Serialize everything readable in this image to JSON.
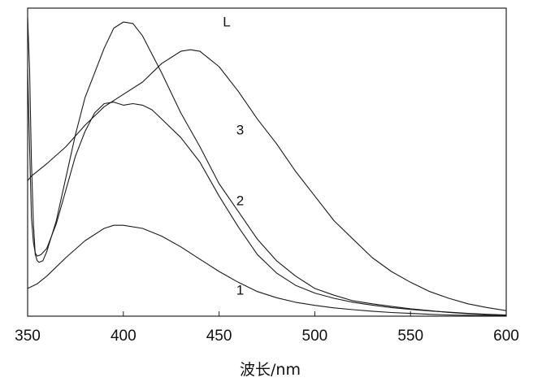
{
  "chart_data": {
    "type": "line",
    "title": "",
    "xlabel": "波长/nm",
    "ylabel": "",
    "xlim": [
      350,
      600
    ],
    "ylim": [
      0,
      100
    ],
    "x_ticks": [
      350,
      400,
      450,
      500,
      550,
      600
    ],
    "grid": false,
    "series": [
      {
        "name": "L",
        "points": [
          [
            350,
            44
          ],
          [
            352,
            45.5
          ],
          [
            355,
            47
          ],
          [
            360,
            49.5
          ],
          [
            370,
            55
          ],
          [
            380,
            62
          ],
          [
            390,
            68
          ],
          [
            400,
            72
          ],
          [
            410,
            76
          ],
          [
            420,
            82
          ],
          [
            430,
            86
          ],
          [
            435,
            86.5
          ],
          [
            440,
            86
          ],
          [
            450,
            81
          ],
          [
            460,
            73
          ],
          [
            470,
            64
          ],
          [
            480,
            56
          ],
          [
            490,
            47
          ],
          [
            500,
            39
          ],
          [
            510,
            31
          ],
          [
            520,
            25
          ],
          [
            530,
            19
          ],
          [
            540,
            14.5
          ],
          [
            550,
            11
          ],
          [
            560,
            8
          ],
          [
            570,
            5.8
          ],
          [
            580,
            4
          ],
          [
            590,
            2.8
          ],
          [
            600,
            1.8
          ]
        ]
      },
      {
        "name": "3",
        "points": [
          [
            350,
            97
          ],
          [
            351,
            80
          ],
          [
            352,
            50
          ],
          [
            353,
            30
          ],
          [
            354,
            20
          ],
          [
            355,
            18
          ],
          [
            356,
            17.5
          ],
          [
            358,
            18
          ],
          [
            360,
            21
          ],
          [
            365,
            31
          ],
          [
            370,
            45
          ],
          [
            375,
            59
          ],
          [
            380,
            71
          ],
          [
            385,
            79
          ],
          [
            390,
            87
          ],
          [
            395,
            93.5
          ],
          [
            400,
            95.5
          ],
          [
            405,
            95
          ],
          [
            410,
            91
          ],
          [
            420,
            79
          ],
          [
            430,
            66
          ],
          [
            440,
            55
          ],
          [
            450,
            43
          ],
          [
            460,
            34
          ],
          [
            470,
            25
          ],
          [
            480,
            18
          ],
          [
            490,
            13
          ],
          [
            500,
            9
          ],
          [
            510,
            6.8
          ],
          [
            520,
            5
          ],
          [
            530,
            4
          ],
          [
            540,
            3.2
          ],
          [
            550,
            2.4
          ],
          [
            560,
            1.8
          ],
          [
            570,
            1.2
          ],
          [
            580,
            0.8
          ],
          [
            590,
            0.5
          ],
          [
            600,
            0.3
          ]
        ]
      },
      {
        "name": "2",
        "points": [
          [
            350,
            80
          ],
          [
            351,
            55
          ],
          [
            352,
            32
          ],
          [
            353,
            24
          ],
          [
            354,
            20.5
          ],
          [
            355,
            19.5
          ],
          [
            357,
            20
          ],
          [
            360,
            22
          ],
          [
            365,
            30
          ],
          [
            370,
            41
          ],
          [
            375,
            52
          ],
          [
            380,
            60
          ],
          [
            385,
            66
          ],
          [
            390,
            69
          ],
          [
            395,
            69.5
          ],
          [
            400,
            68.5
          ],
          [
            405,
            69
          ],
          [
            410,
            68.5
          ],
          [
            415,
            67
          ],
          [
            420,
            64
          ],
          [
            430,
            58
          ],
          [
            440,
            50
          ],
          [
            450,
            39
          ],
          [
            460,
            29
          ],
          [
            470,
            20
          ],
          [
            480,
            14
          ],
          [
            490,
            10
          ],
          [
            500,
            7.5
          ],
          [
            510,
            5.8
          ],
          [
            520,
            4.5
          ],
          [
            530,
            3.6
          ],
          [
            540,
            2.8
          ],
          [
            550,
            2.2
          ],
          [
            560,
            1.7
          ],
          [
            570,
            1.3
          ],
          [
            580,
            0.9
          ],
          [
            590,
            0.6
          ],
          [
            600,
            0.4
          ]
        ]
      },
      {
        "name": "1",
        "points": [
          [
            350,
            9
          ],
          [
            355,
            10.5
          ],
          [
            360,
            13
          ],
          [
            370,
            19
          ],
          [
            380,
            24.5
          ],
          [
            390,
            28.5
          ],
          [
            395,
            29.5
          ],
          [
            400,
            29.5
          ],
          [
            410,
            28.5
          ],
          [
            420,
            26
          ],
          [
            430,
            22.5
          ],
          [
            440,
            18.5
          ],
          [
            450,
            14.5
          ],
          [
            460,
            11
          ],
          [
            470,
            8
          ],
          [
            480,
            6
          ],
          [
            490,
            4.5
          ],
          [
            500,
            3.5
          ],
          [
            510,
            2.7
          ],
          [
            520,
            2.1
          ],
          [
            530,
            1.6
          ],
          [
            540,
            1.2
          ],
          [
            550,
            0.9
          ],
          [
            560,
            0.6
          ],
          [
            570,
            0.4
          ],
          [
            580,
            0.3
          ],
          [
            590,
            0.2
          ],
          [
            600,
            0.1
          ]
        ]
      }
    ],
    "annotations": [
      {
        "text": "L",
        "x": 454,
        "y": 94
      },
      {
        "text": "3",
        "x": 461,
        "y": 59
      },
      {
        "text": "2",
        "x": 461,
        "y": 36
      },
      {
        "text": "1",
        "x": 461,
        "y": 7
      }
    ]
  }
}
